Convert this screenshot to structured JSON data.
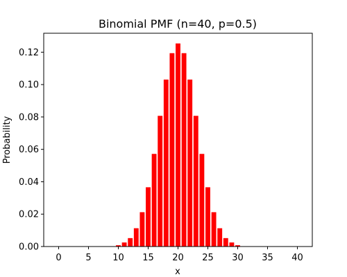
{
  "chart_data": {
    "type": "bar",
    "title": "Binomial PMF (n=40, p=0.5)",
    "xlabel": "x",
    "ylabel": "Probability",
    "x": [
      0,
      1,
      2,
      3,
      4,
      5,
      6,
      7,
      8,
      9,
      10,
      11,
      12,
      13,
      14,
      15,
      16,
      17,
      18,
      19,
      20,
      21,
      22,
      23,
      24,
      25,
      26,
      27,
      28,
      29,
      30,
      31,
      32,
      33,
      34,
      35,
      36,
      37,
      38,
      39,
      40
    ],
    "values": [
      0,
      0,
      0,
      0,
      0,
      0,
      0,
      0,
      1e-05,
      9e-05,
      0.0008,
      0.0025,
      0.0052,
      0.0113,
      0.0212,
      0.0366,
      0.0572,
      0.0807,
      0.1031,
      0.1194,
      0.1254,
      0.1194,
      0.1031,
      0.0807,
      0.0572,
      0.0366,
      0.0212,
      0.0113,
      0.0052,
      0.0025,
      0.0008,
      9e-05,
      1e-05,
      0,
      0,
      0,
      0,
      0,
      0,
      0,
      0
    ],
    "color": "#ff0000",
    "xlim": [
      -2.5,
      42.5
    ],
    "ylim": [
      0,
      0.1317
    ],
    "xticks": [
      0,
      5,
      10,
      15,
      20,
      25,
      30,
      35,
      40
    ],
    "xtick_labels": [
      "0",
      "5",
      "10",
      "15",
      "20",
      "25",
      "30",
      "35",
      "40"
    ],
    "yticks": [
      0,
      0.02,
      0.04,
      0.06,
      0.08,
      0.1,
      0.12
    ],
    "ytick_labels": [
      "0.00",
      "0.02",
      "0.04",
      "0.06",
      "0.08",
      "0.10",
      "0.12"
    ],
    "grid": false,
    "legend": false
  }
}
